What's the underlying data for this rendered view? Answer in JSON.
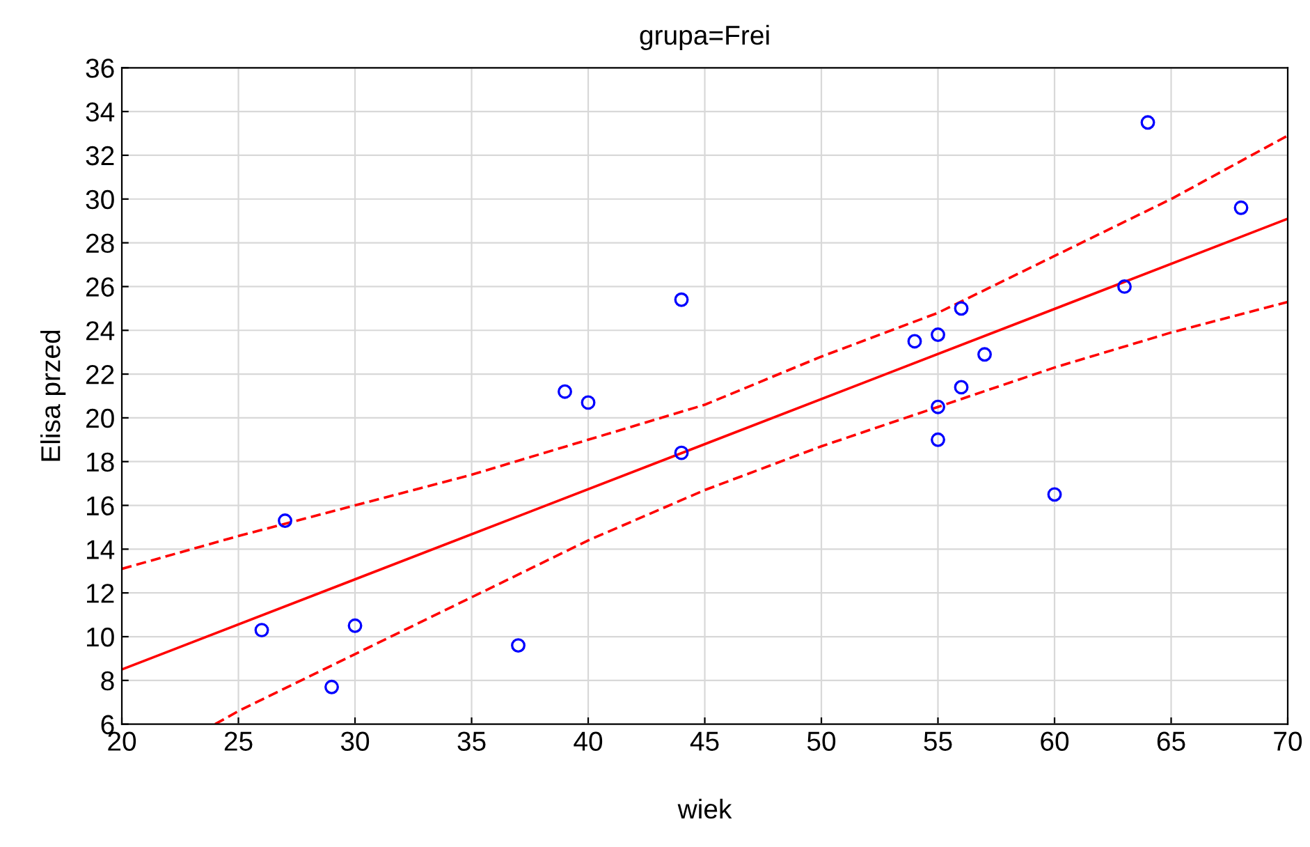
{
  "chart_data": {
    "type": "scatter",
    "title": "grupa=Frei",
    "xlabel": "wiek",
    "ylabel": "Elisa przed",
    "xlim": [
      20,
      70
    ],
    "xticks": [
      20,
      25,
      30,
      35,
      40,
      45,
      50,
      55,
      60,
      65,
      70
    ],
    "ylim": [
      6,
      36
    ],
    "yticks": [
      6,
      8,
      10,
      12,
      14,
      16,
      18,
      20,
      22,
      24,
      26,
      28,
      30,
      32,
      34,
      36
    ],
    "grid": true,
    "series": [
      {
        "color": "#0000ff",
        "marker": "circle",
        "x": [
          26,
          27,
          29,
          30,
          37,
          39,
          40,
          44,
          44,
          54,
          55,
          55,
          55,
          56,
          56,
          57,
          60,
          63,
          64,
          68
        ],
        "values": [
          10.3,
          15.3,
          7.7,
          10.5,
          9.6,
          21.2,
          20.7,
          25.4,
          18.4,
          23.5,
          23.8,
          20.5,
          19.0,
          25.0,
          21.4,
          22.9,
          16.5,
          26.0,
          33.5,
          29.6
        ]
      },
      {
        "type": "line",
        "color": "#ff0000",
        "marker": "none",
        "line_style": "solid",
        "x": [
          20,
          70
        ],
        "values": [
          8.5,
          29.1
        ]
      },
      {
        "type": "line",
        "color": "#ff0000",
        "marker": "none",
        "line_style": "dashed",
        "x": [
          20,
          25,
          30,
          35,
          40,
          45,
          50,
          55,
          60,
          65,
          70
        ],
        "values": [
          13.1,
          14.6,
          16.0,
          17.4,
          19.0,
          20.6,
          22.8,
          24.8,
          27.4,
          30.0,
          32.9
        ]
      },
      {
        "type": "line",
        "color": "#ff0000",
        "marker": "none",
        "line_style": "dashed",
        "x": [
          24,
          25,
          30,
          35,
          40,
          45,
          50,
          55,
          60,
          65,
          70
        ],
        "values": [
          6.0,
          6.6,
          9.2,
          11.8,
          14.4,
          16.7,
          18.7,
          20.5,
          22.3,
          23.9,
          25.3
        ]
      }
    ]
  }
}
